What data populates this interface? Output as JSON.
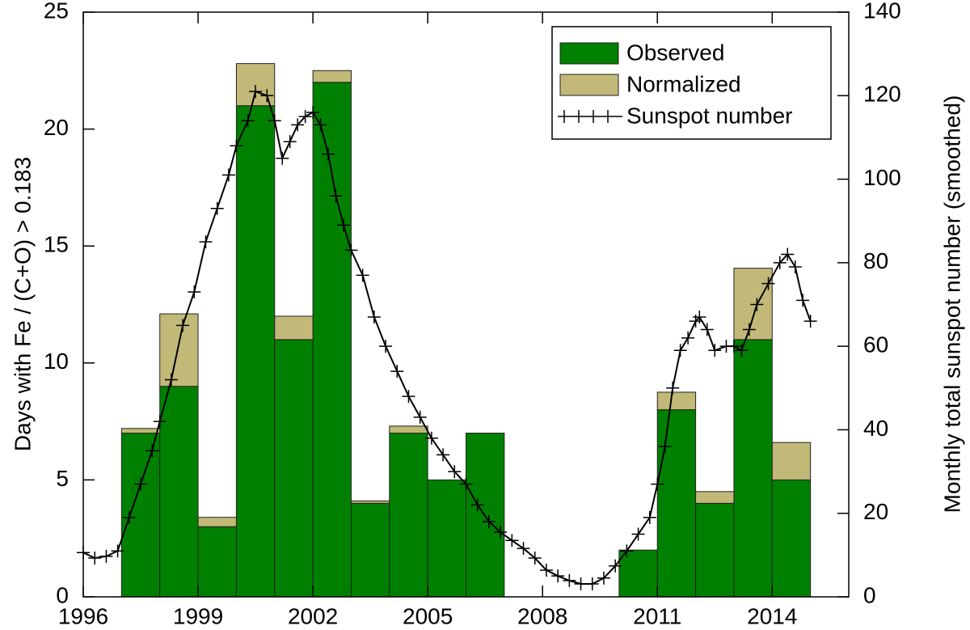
{
  "chart_data": {
    "type": "bar",
    "ylabel": "Days with Fe / (C+O) > 0.183",
    "y2label": "Monthly total sunspot number (smoothed)",
    "xlim": [
      1996,
      2016
    ],
    "xticks": [
      1996,
      1999,
      2002,
      2005,
      2008,
      2011,
      2014
    ],
    "ylim": [
      0,
      25
    ],
    "yticks": [
      0,
      5,
      10,
      15,
      20,
      25
    ],
    "y2lim": [
      0,
      140
    ],
    "y2ticks": [
      0,
      20,
      40,
      60,
      80,
      100,
      120,
      140
    ],
    "legend": "upper right",
    "x": [
      1997,
      1998,
      1999,
      2000,
      2001,
      2002,
      2003,
      2004,
      2005,
      2006,
      2010,
      2011,
      2012,
      2013,
      2014
    ],
    "series": [
      {
        "name": "Observed",
        "color": "#008000",
        "values": [
          7,
          9,
          3,
          21,
          11,
          22,
          4,
          7,
          5,
          7,
          2,
          8,
          4,
          11,
          5
        ]
      },
      {
        "name": "Normalized",
        "color": "#c2b978",
        "values": [
          0.2,
          3.1,
          0.4,
          1.8,
          1.0,
          0.5,
          0.1,
          0.3,
          0,
          0,
          0,
          0.75,
          0.5,
          3.05,
          1.6
        ]
      },
      {
        "name": "Sunspot number",
        "type": "line",
        "axis": "y2",
        "color": "#000000",
        "x": [
          1996.0,
          1996.3,
          1996.6,
          1996.9,
          1997.2,
          1997.5,
          1997.8,
          1998.0,
          1998.3,
          1998.6,
          1998.9,
          1999.2,
          1999.5,
          1999.8,
          2000.0,
          2000.3,
          2000.5,
          2000.8,
          2001.0,
          2001.2,
          2001.4,
          2001.6,
          2001.8,
          2002.0,
          2002.2,
          2002.4,
          2002.6,
          2002.8,
          2003.0,
          2003.3,
          2003.6,
          2003.9,
          2004.2,
          2004.5,
          2004.8,
          2005.1,
          2005.4,
          2005.7,
          2006.0,
          2006.3,
          2006.6,
          2006.9,
          2007.2,
          2007.5,
          2007.8,
          2008.1,
          2008.4,
          2008.7,
          2009.0,
          2009.3,
          2009.6,
          2009.9,
          2010.2,
          2010.5,
          2010.8,
          2011.0,
          2011.2,
          2011.4,
          2011.6,
          2011.8,
          2012.0,
          2012.1,
          2012.3,
          2012.5,
          2012.8,
          2013.0,
          2013.2,
          2013.4,
          2013.6,
          2013.9,
          2014.2,
          2014.4,
          2014.6,
          2014.8,
          2015.0
        ],
        "values": [
          10.6,
          9.3,
          9.7,
          11,
          19,
          27,
          35,
          42,
          52,
          65,
          73,
          85,
          93,
          101,
          108,
          114,
          121,
          120,
          114,
          105,
          109,
          113,
          115,
          116,
          113,
          106,
          96,
          89,
          83,
          77,
          67,
          60,
          54,
          48,
          43,
          38,
          34,
          30,
          27,
          22,
          18,
          15.5,
          13.5,
          11.6,
          9.3,
          6.4,
          5,
          3.9,
          3.1,
          3.1,
          4.5,
          7.4,
          11,
          15,
          19,
          27,
          36,
          50,
          59,
          62,
          66,
          67,
          64,
          59,
          60,
          60,
          59,
          64,
          70,
          75,
          80,
          82,
          79,
          71,
          66
        ]
      }
    ]
  }
}
